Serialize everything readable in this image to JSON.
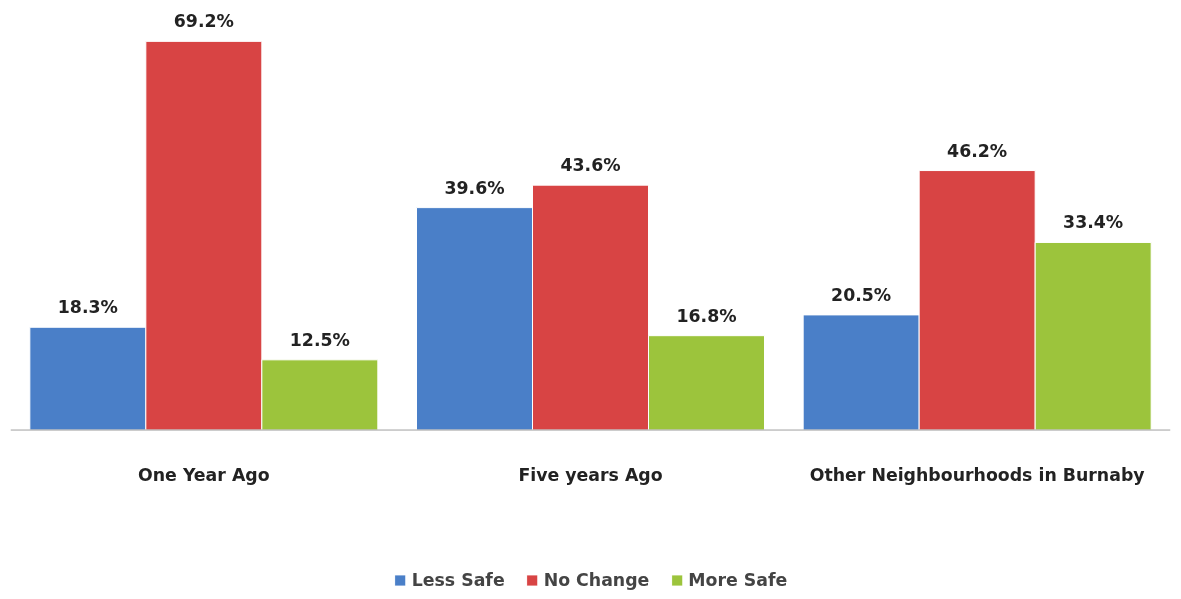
{
  "chart_data": {
    "type": "bar",
    "categories": [
      "One Year Ago",
      "Five years Ago",
      "Other Neighbourhoods in Burnaby"
    ],
    "series": [
      {
        "name": "Less Safe",
        "color": "#4a7fc8",
        "values": [
          18.3,
          39.6,
          20.5
        ],
        "value_labels": [
          "18.3%",
          "39.6%",
          "20.5%"
        ]
      },
      {
        "name": "No Change",
        "color": "#d84444",
        "values": [
          69.2,
          43.6,
          46.2
        ],
        "value_labels": [
          "69.2%",
          "43.6%",
          "46.2%"
        ]
      },
      {
        "name": "More Safe",
        "color": "#9cc43c",
        "values": [
          12.5,
          16.8,
          33.4
        ],
        "value_labels": [
          "12.5%",
          "16.8%",
          "33.4%"
        ]
      }
    ],
    "legend": "bottom"
  }
}
